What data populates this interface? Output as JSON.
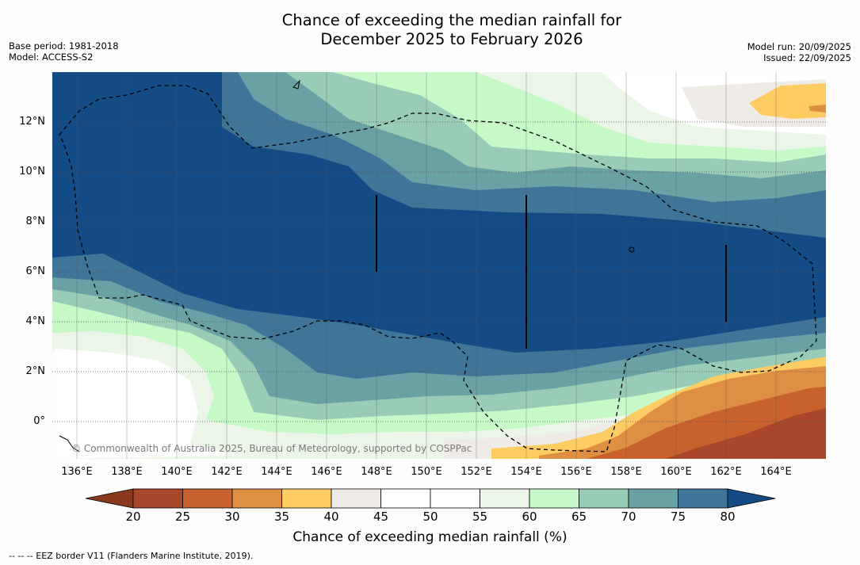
{
  "title_line1": "Chance of exceeding the median rainfall for",
  "title_line2": "December 2025 to February 2026",
  "base_period": "Base period: 1981-2018",
  "model": "Model: ACCESS-S2",
  "model_run": "Model run: 20/09/2025",
  "issued": "Issued: 22/09/2025",
  "copyright": "© Commonwealth of Australia 2025, Bureau of Meteorology, supported by COSPPac",
  "footnote": "--  --  -- EEZ border V11 (Flanders Marine Institute, 2019).",
  "lat_labels": [
    "12°N",
    "10°N",
    "8°N",
    "6°N",
    "4°N",
    "2°N",
    "0°"
  ],
  "lon_labels": [
    "136°E",
    "138°E",
    "140°E",
    "142°E",
    "144°E",
    "146°E",
    "148°E",
    "150°E",
    "152°E",
    "154°E",
    "156°E",
    "158°E",
    "160°E",
    "162°E",
    "164°E"
  ],
  "colorbar": {
    "label": "Chance of exceeding median rainfall (%)",
    "ticks": [
      "20",
      "25",
      "30",
      "35",
      "40",
      "45",
      "50",
      "55",
      "60",
      "65",
      "70",
      "75",
      "80"
    ],
    "under_color": "#8c3a1e",
    "colors": [
      "#a84729",
      "#c9612f",
      "#df8f41",
      "#fdcc63",
      "#efebe6",
      "#ffffff",
      "#ffffff",
      "#ebf6e8",
      "#c7f8c8",
      "#98ccb6",
      "#6aa1a4",
      "#3e7598"
    ],
    "over_color": "#134b85"
  }
}
